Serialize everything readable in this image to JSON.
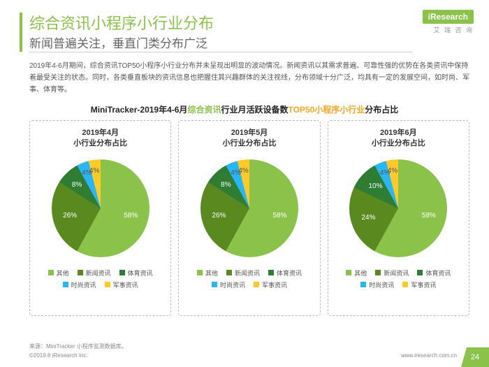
{
  "brand": {
    "logo": "iResearch",
    "logo_sub": "艾 瑞 咨 询"
  },
  "title": "综合资讯小程序小行业分布",
  "subtitle": "新闻普遍关注，垂直门类分布广泛",
  "body": "2019年4-6月期间，综合资讯TOP50小程序小行业分布并未呈现出明显的波动情况。新闻资讯以其需求普遍、可靠性强的优势在各类资讯中保持着最受关注的状态。同时，各类垂直板块的资讯信息也把握住其兴趣群体的关注视线，分布领域十分广泛，均具有一定的发展空间，如时尚、军事、体育等。",
  "chart_title": {
    "p1": "MiniTracker-2019年4-6月",
    "p2": "综合资讯",
    "p3": "行业月活跃设备数",
    "p4": "TOP50小程序小行业",
    "p5": "分布占比"
  },
  "colors": {
    "accent": "#8bc34a",
    "orange": "#f5a623",
    "text": "#555555",
    "border": "#bbbbbb",
    "slice_other": "#8bc34a",
    "slice_news": "#5a8a1f",
    "slice_sports": "#2e7d32",
    "slice_fashion": "#29b6f6",
    "slice_military": "#ffca28"
  },
  "legend": [
    "其他",
    "新闻资讯",
    "体育资讯",
    "时尚资讯",
    "军事资讯"
  ],
  "panels": [
    {
      "title_l1": "2019年4月",
      "title_l2": "小行业分布占比",
      "slices": [
        {
          "label": "58%",
          "value": 58,
          "color": "#8bc34a"
        },
        {
          "label": "26%",
          "value": 26,
          "color": "#5a8a1f"
        },
        {
          "label": "8%",
          "value": 8,
          "color": "#2e7d32"
        },
        {
          "label": "4%",
          "value": 4,
          "color": "#29b6f6"
        },
        {
          "label": "4%",
          "value": 4,
          "color": "#ffca28"
        }
      ]
    },
    {
      "title_l1": "2019年5月",
      "title_l2": "小行业分布占比",
      "slices": [
        {
          "label": "58%",
          "value": 58,
          "color": "#8bc34a"
        },
        {
          "label": "26%",
          "value": 26,
          "color": "#5a8a1f"
        },
        {
          "label": "8%",
          "value": 8,
          "color": "#2e7d32"
        },
        {
          "label": "4%",
          "value": 4,
          "color": "#29b6f6"
        },
        {
          "label": "4%",
          "value": 4,
          "color": "#ffca28"
        }
      ]
    },
    {
      "title_l1": "2019年6月",
      "title_l2": "小行业分布占比",
      "slices": [
        {
          "label": "58%",
          "value": 58,
          "color": "#8bc34a"
        },
        {
          "label": "24%",
          "value": 24,
          "color": "#5a8a1f"
        },
        {
          "label": "10%",
          "value": 10,
          "color": "#2e7d32"
        },
        {
          "label": "4%",
          "value": 4,
          "color": "#29b6f6"
        },
        {
          "label": "4%",
          "value": 4,
          "color": "#ffca28"
        }
      ]
    }
  ],
  "footer": {
    "source": "来源：MiniTracker 小程序监测数据库。",
    "copy": "©2019.8 iResearch Inc.",
    "url": "www.iresearch.com.cn",
    "page": "24"
  }
}
